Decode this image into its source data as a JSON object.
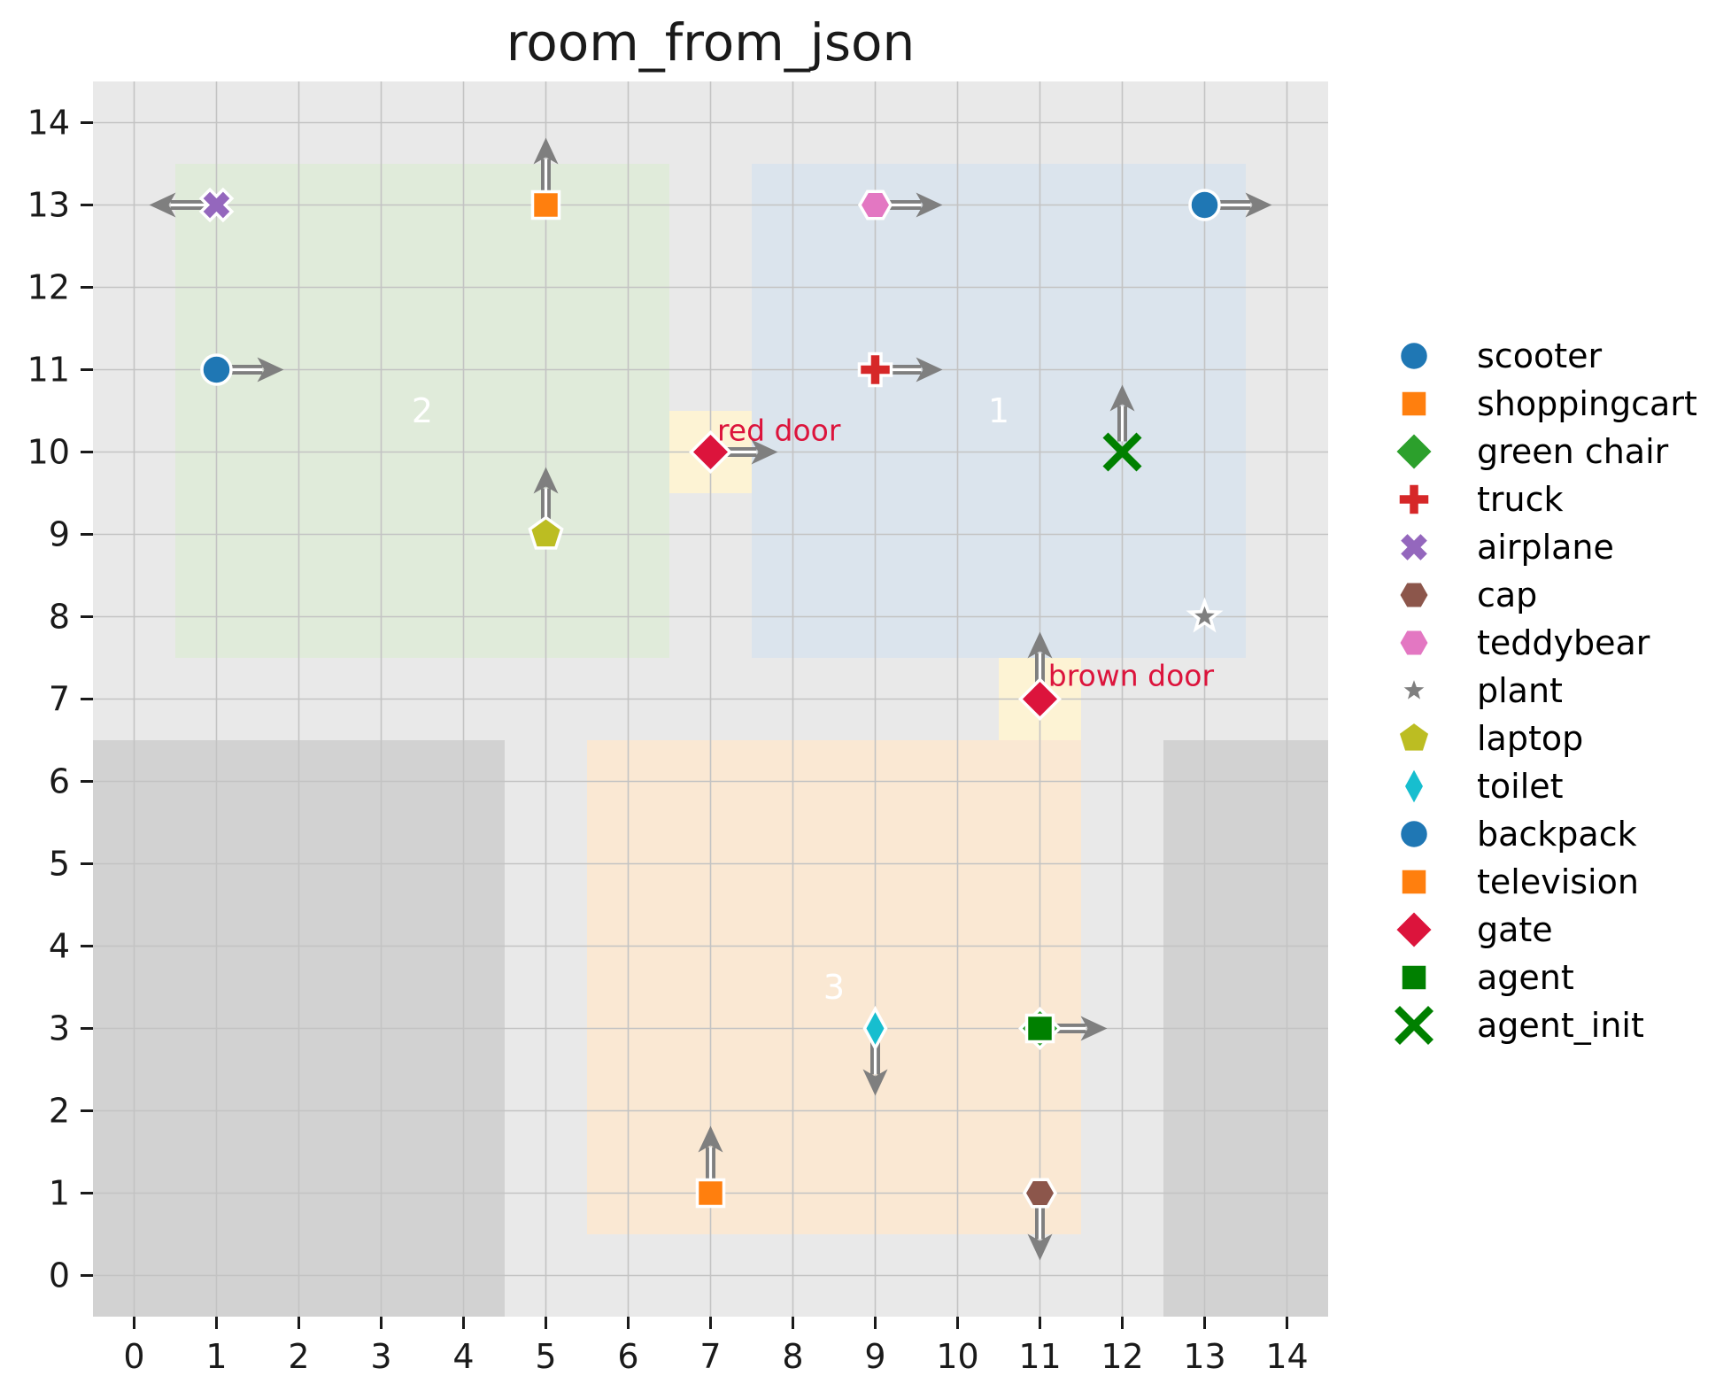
{
  "chart_data": {
    "type": "scatter",
    "title": "room_from_json",
    "xlabel": "",
    "ylabel": "",
    "xlim": [
      -0.5,
      14.5
    ],
    "ylim": [
      -0.5,
      14.5
    ],
    "x_ticks": [
      0,
      1,
      2,
      3,
      4,
      5,
      6,
      7,
      8,
      9,
      10,
      11,
      12,
      13,
      14
    ],
    "y_ticks": [
      0,
      1,
      2,
      3,
      4,
      5,
      6,
      7,
      8,
      9,
      10,
      11,
      12,
      13,
      14
    ],
    "grid": true,
    "legend_position": "right",
    "colors": {
      "figure_bg": "#ffffff",
      "axes_bg": "#e9e9e9",
      "blocked": "#d2d2d2",
      "grid": "#c3c3c3",
      "tick": "#1a1a1a",
      "arrow": "#7f7f7f",
      "arrow_core": "#ffffff",
      "door_region": "#fdf3d4",
      "door_label": "#dc143c",
      "room_label": "#ffffff",
      "marker_edge": "#ffffff"
    },
    "rooms": [
      {
        "label": "1",
        "x0": 7.5,
        "y0": 7.5,
        "x1": 13.5,
        "y1": 13.5,
        "color": "#dbe4ed",
        "label_x": 10.5,
        "label_y": 10.5
      },
      {
        "label": "2",
        "x0": 0.5,
        "y0": 7.5,
        "x1": 6.5,
        "y1": 13.5,
        "color": "#e0ebda",
        "label_x": 3.5,
        "label_y": 10.5
      },
      {
        "label": "3",
        "x0": 5.5,
        "y0": 0.5,
        "x1": 11.5,
        "y1": 6.5,
        "color": "#fae8d3",
        "label_x": 8.5,
        "label_y": 3.5
      }
    ],
    "blocked_areas": [
      {
        "x0": -0.5,
        "y0": -0.5,
        "x1": 4.5,
        "y1": 6.5
      },
      {
        "x0": 12.5,
        "y0": -0.5,
        "x1": 14.5,
        "y1": 6.5
      }
    ],
    "doors": [
      {
        "label": "red door",
        "x": 7,
        "y": 10,
        "x0": 6.5,
        "y0": 9.5,
        "x1": 7.5,
        "y1": 10.5,
        "label_x": 7.08,
        "label_y": 10.14
      },
      {
        "label": "brown door",
        "x": 11,
        "y": 7,
        "x0": 10.5,
        "y0": 6.5,
        "x1": 11.5,
        "y1": 7.5,
        "label_x": 11.1,
        "label_y": 7.16
      }
    ],
    "objects": [
      {
        "name": "airplane",
        "marker": "x_filled",
        "color": "#9467bd",
        "x": 1,
        "y": 13,
        "dir": "left"
      },
      {
        "name": "shoppingcart",
        "marker": "square",
        "color": "#ff7f0e",
        "x": 5,
        "y": 13,
        "dir": "up"
      },
      {
        "name": "teddybear",
        "marker": "hexagon",
        "color": "#e377c2",
        "x": 9,
        "y": 13,
        "dir": "right"
      },
      {
        "name": "backpack",
        "marker": "circle",
        "color": "#1f77b4",
        "x": 13,
        "y": 13,
        "dir": "right"
      },
      {
        "name": "scooter",
        "marker": "circle",
        "color": "#1f77b4",
        "x": 1,
        "y": 11,
        "dir": "right"
      },
      {
        "name": "truck",
        "marker": "plus",
        "color": "#d62728",
        "x": 9,
        "y": 11,
        "dir": "right"
      },
      {
        "name": "gate-red-door",
        "marker": "diamond",
        "color": "#dc143c",
        "x": 7,
        "y": 10,
        "dir": "right"
      },
      {
        "name": "agent_init",
        "marker": "x_stroke",
        "color": "#008000",
        "x": 12,
        "y": 10,
        "dir": "up"
      },
      {
        "name": "laptop",
        "marker": "pentagon",
        "color": "#bcbd22",
        "x": 5,
        "y": 9,
        "dir": "up"
      },
      {
        "name": "plant",
        "marker": "star",
        "color": "#7f7f7f",
        "x": 13,
        "y": 8,
        "dir": null
      },
      {
        "name": "gate-brown-door",
        "marker": "diamond",
        "color": "#dc143c",
        "x": 11,
        "y": 7,
        "dir": "up"
      },
      {
        "name": "green chair",
        "marker": "diamond",
        "color": "#2ca02c",
        "x": 11,
        "y": 3,
        "dir": null
      },
      {
        "name": "toilet",
        "marker": "thin_diamond",
        "color": "#17becf",
        "x": 9,
        "y": 3,
        "dir": "down"
      },
      {
        "name": "agent",
        "marker": "square",
        "color": "#008000",
        "x": 11,
        "y": 3,
        "dir": "right"
      },
      {
        "name": "television",
        "marker": "square",
        "color": "#ff7f0e",
        "x": 7,
        "y": 1,
        "dir": "up"
      },
      {
        "name": "cap",
        "marker": "hexagon",
        "color": "#8c564b",
        "x": 11,
        "y": 1,
        "dir": "down"
      }
    ],
    "legend": [
      {
        "label": "scooter",
        "marker": "circle",
        "color": "#1f77b4"
      },
      {
        "label": "shoppingcart",
        "marker": "square",
        "color": "#ff7f0e"
      },
      {
        "label": "green chair",
        "marker": "diamond",
        "color": "#2ca02c"
      },
      {
        "label": "truck",
        "marker": "plus",
        "color": "#d62728"
      },
      {
        "label": "airplane",
        "marker": "x_filled",
        "color": "#9467bd"
      },
      {
        "label": "cap",
        "marker": "hexagon",
        "color": "#8c564b"
      },
      {
        "label": "teddybear",
        "marker": "hexagon",
        "color": "#e377c2"
      },
      {
        "label": "plant",
        "marker": "star",
        "color": "#7f7f7f"
      },
      {
        "label": "laptop",
        "marker": "pentagon",
        "color": "#bcbd22"
      },
      {
        "label": "toilet",
        "marker": "thin_diamond",
        "color": "#17becf"
      },
      {
        "label": "backpack",
        "marker": "circle",
        "color": "#1f77b4"
      },
      {
        "label": "television",
        "marker": "square",
        "color": "#ff7f0e"
      },
      {
        "label": "gate",
        "marker": "diamond",
        "color": "#dc143c"
      },
      {
        "label": "agent",
        "marker": "square",
        "color": "#008000"
      },
      {
        "label": "agent_init",
        "marker": "x_stroke",
        "color": "#008000"
      }
    ]
  }
}
